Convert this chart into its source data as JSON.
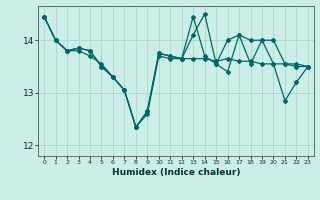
{
  "xlabel": "Humidex (Indice chaleur)",
  "ylabel": "",
  "background_color": "#cceee8",
  "grid_color": "#aad8d0",
  "line_color": "#006666",
  "xlim": [
    -0.5,
    23.5
  ],
  "ylim": [
    11.8,
    14.65
  ],
  "yticks": [
    12,
    13,
    14
  ],
  "xticks": [
    0,
    1,
    2,
    3,
    4,
    5,
    6,
    7,
    8,
    9,
    10,
    11,
    12,
    13,
    14,
    15,
    16,
    17,
    18,
    19,
    20,
    21,
    22,
    23
  ],
  "series": [
    [
      14.45,
      14.0,
      13.8,
      13.8,
      13.7,
      13.55,
      13.3,
      13.05,
      12.35,
      12.6,
      13.7,
      13.65,
      13.65,
      13.65,
      13.65,
      13.6,
      13.65,
      13.6,
      13.6,
      13.55,
      13.55,
      13.55,
      13.5,
      13.5
    ],
    [
      14.45,
      14.0,
      13.8,
      13.85,
      13.8,
      13.5,
      13.3,
      13.05,
      12.35,
      12.65,
      13.75,
      13.7,
      13.65,
      14.45,
      13.7,
      13.55,
      14.0,
      14.1,
      14.0,
      14.0,
      13.55,
      12.85,
      13.2,
      13.5
    ],
    [
      14.45,
      14.0,
      13.8,
      13.85,
      13.8,
      13.5,
      13.3,
      13.05,
      12.35,
      12.65,
      13.75,
      13.7,
      13.65,
      14.1,
      14.5,
      13.55,
      13.4,
      14.1,
      13.55,
      14.0,
      14.0,
      13.55,
      13.55,
      13.5
    ]
  ]
}
